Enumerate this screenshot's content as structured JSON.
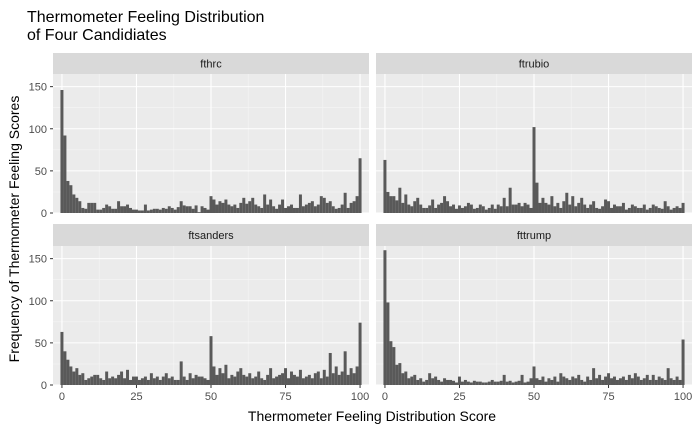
{
  "chart_data": {
    "type": "bar",
    "title": "Thermometer Feeling Distribution\nof Four Candidiates",
    "xlabel": "Thermometer Feeling Distribution Score",
    "ylabel": "Frequency of Thermometer Feeling Scores",
    "xlim": [
      -3,
      103
    ],
    "ylim": [
      0,
      165
    ],
    "xticks": [
      0,
      25,
      50,
      75,
      100
    ],
    "yticks": [
      0,
      50,
      100,
      150
    ],
    "grid": true,
    "panels": [
      {
        "name": "fthrc",
        "x": [
          0,
          1,
          2,
          3,
          4,
          5,
          6,
          7,
          8,
          9,
          10,
          11,
          12,
          13,
          14,
          15,
          16,
          17,
          18,
          19,
          20,
          21,
          22,
          23,
          24,
          25,
          26,
          27,
          28,
          29,
          30,
          31,
          32,
          33,
          34,
          35,
          36,
          37,
          38,
          39,
          40,
          41,
          42,
          43,
          44,
          45,
          46,
          47,
          48,
          49,
          50,
          51,
          52,
          53,
          54,
          55,
          56,
          57,
          58,
          59,
          60,
          61,
          62,
          63,
          64,
          65,
          66,
          67,
          68,
          69,
          70,
          71,
          72,
          73,
          74,
          75,
          76,
          77,
          78,
          79,
          80,
          81,
          82,
          83,
          84,
          85,
          86,
          87,
          88,
          89,
          90,
          91,
          92,
          93,
          94,
          95,
          96,
          97,
          98,
          99,
          100
        ],
        "values": [
          146,
          92,
          38,
          33,
          22,
          18,
          14,
          6,
          5,
          12,
          12,
          12,
          4,
          4,
          6,
          10,
          8,
          5,
          5,
          14,
          8,
          8,
          10,
          6,
          4,
          4,
          3,
          3,
          10,
          3,
          4,
          5,
          5,
          4,
          6,
          5,
          8,
          6,
          4,
          7,
          14,
          9,
          8,
          8,
          5,
          9,
          1,
          8,
          6,
          4,
          20,
          16,
          10,
          14,
          12,
          16,
          10,
          8,
          10,
          6,
          12,
          18,
          11,
          14,
          18,
          10,
          8,
          6,
          22,
          10,
          16,
          8,
          5,
          10,
          16,
          6,
          8,
          10,
          6,
          6,
          22,
          8,
          10,
          12,
          14,
          8,
          10,
          20,
          18,
          12,
          14,
          8,
          5,
          6,
          10,
          24,
          6,
          12,
          14,
          20,
          65
        ]
      },
      {
        "name": "ftrubio",
        "x": [
          0,
          1,
          2,
          3,
          4,
          5,
          6,
          7,
          8,
          9,
          10,
          11,
          12,
          13,
          14,
          15,
          16,
          17,
          18,
          19,
          20,
          21,
          22,
          23,
          24,
          25,
          26,
          27,
          28,
          29,
          30,
          31,
          32,
          33,
          34,
          35,
          36,
          37,
          38,
          39,
          40,
          41,
          42,
          43,
          44,
          45,
          46,
          47,
          48,
          49,
          50,
          51,
          52,
          53,
          54,
          55,
          56,
          57,
          58,
          59,
          60,
          61,
          62,
          63,
          64,
          65,
          66,
          67,
          68,
          69,
          70,
          71,
          72,
          73,
          74,
          75,
          76,
          77,
          78,
          79,
          80,
          81,
          82,
          83,
          84,
          85,
          86,
          87,
          88,
          89,
          90,
          91,
          92,
          93,
          94,
          95,
          96,
          97,
          98,
          99,
          100
        ],
        "values": [
          63,
          25,
          20,
          20,
          15,
          30,
          12,
          22,
          10,
          8,
          14,
          18,
          10,
          6,
          6,
          9,
          16,
          6,
          10,
          12,
          20,
          14,
          8,
          10,
          5,
          9,
          6,
          8,
          12,
          10,
          5,
          6,
          10,
          8,
          4,
          6,
          10,
          5,
          10,
          8,
          18,
          8,
          30,
          10,
          10,
          12,
          8,
          12,
          10,
          6,
          102,
          36,
          12,
          18,
          12,
          10,
          20,
          8,
          12,
          6,
          14,
          24,
          10,
          20,
          8,
          12,
          18,
          10,
          6,
          10,
          14,
          6,
          5,
          8,
          16,
          14,
          6,
          10,
          8,
          8,
          12,
          4,
          6,
          10,
          8,
          6,
          6,
          10,
          4,
          6,
          10,
          8,
          6,
          5,
          14,
          8,
          4,
          6,
          8,
          6,
          12
        ]
      },
      {
        "name": "ftsanders",
        "x": [
          0,
          1,
          2,
          3,
          4,
          5,
          6,
          7,
          8,
          9,
          10,
          11,
          12,
          13,
          14,
          15,
          16,
          17,
          18,
          19,
          20,
          21,
          22,
          23,
          24,
          25,
          26,
          27,
          28,
          29,
          30,
          31,
          32,
          33,
          34,
          35,
          36,
          37,
          38,
          39,
          40,
          41,
          42,
          43,
          44,
          45,
          46,
          47,
          48,
          49,
          50,
          51,
          52,
          53,
          54,
          55,
          56,
          57,
          58,
          59,
          60,
          61,
          62,
          63,
          64,
          65,
          66,
          67,
          68,
          69,
          70,
          71,
          72,
          73,
          74,
          75,
          76,
          77,
          78,
          79,
          80,
          81,
          82,
          83,
          84,
          85,
          86,
          87,
          88,
          89,
          90,
          91,
          92,
          93,
          94,
          95,
          96,
          97,
          98,
          99,
          100
        ],
        "values": [
          63,
          40,
          30,
          22,
          16,
          20,
          12,
          14,
          6,
          8,
          10,
          12,
          12,
          8,
          6,
          16,
          8,
          10,
          8,
          12,
          16,
          8,
          18,
          6,
          10,
          10,
          6,
          8,
          10,
          6,
          14,
          8,
          10,
          6,
          10,
          14,
          8,
          10,
          6,
          6,
          28,
          10,
          6,
          14,
          8,
          12,
          10,
          10,
          8,
          6,
          58,
          22,
          12,
          20,
          14,
          24,
          8,
          12,
          10,
          16,
          20,
          12,
          10,
          14,
          8,
          10,
          16,
          8,
          6,
          12,
          20,
          8,
          10,
          12,
          14,
          20,
          8,
          16,
          12,
          10,
          18,
          8,
          10,
          12,
          8,
          14,
          16,
          8,
          18,
          10,
          38,
          14,
          22,
          12,
          16,
          40,
          12,
          20,
          14,
          22,
          74
        ]
      },
      {
        "name": "fttrump",
        "x": [
          0,
          1,
          2,
          3,
          4,
          5,
          6,
          7,
          8,
          9,
          10,
          11,
          12,
          13,
          14,
          15,
          16,
          17,
          18,
          19,
          20,
          21,
          22,
          23,
          24,
          25,
          26,
          27,
          28,
          29,
          30,
          31,
          32,
          33,
          34,
          35,
          36,
          37,
          38,
          39,
          40,
          41,
          42,
          43,
          44,
          45,
          46,
          47,
          48,
          49,
          50,
          51,
          52,
          53,
          54,
          55,
          56,
          57,
          58,
          59,
          60,
          61,
          62,
          63,
          64,
          65,
          66,
          67,
          68,
          69,
          70,
          71,
          72,
          73,
          74,
          75,
          76,
          77,
          78,
          79,
          80,
          81,
          82,
          83,
          84,
          85,
          86,
          87,
          88,
          89,
          90,
          91,
          92,
          93,
          94,
          95,
          96,
          97,
          98,
          99,
          100
        ],
        "values": [
          160,
          98,
          52,
          45,
          24,
          26,
          14,
          16,
          8,
          10,
          12,
          6,
          8,
          4,
          6,
          14,
          8,
          10,
          6,
          4,
          8,
          6,
          6,
          5,
          3,
          10,
          4,
          6,
          4,
          3,
          5,
          4,
          4,
          3,
          3,
          4,
          6,
          4,
          4,
          5,
          12,
          4,
          5,
          3,
          4,
          5,
          12,
          3,
          4,
          8,
          22,
          8,
          6,
          10,
          4,
          8,
          6,
          10,
          4,
          14,
          10,
          8,
          6,
          10,
          8,
          12,
          6,
          4,
          10,
          6,
          20,
          8,
          12,
          6,
          10,
          14,
          8,
          10,
          6,
          8,
          10,
          6,
          12,
          8,
          14,
          10,
          6,
          8,
          12,
          6,
          12,
          6,
          10,
          8,
          6,
          20,
          8,
          6,
          10,
          6,
          54
        ]
      }
    ]
  }
}
